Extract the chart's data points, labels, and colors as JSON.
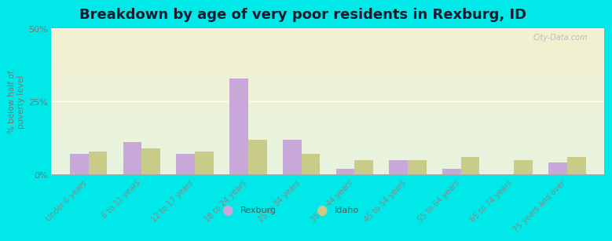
{
  "title": "Breakdown by age of very poor residents in Rexburg, ID",
  "ylabel": "% below half of\npoverty level",
  "categories": [
    "Under 6 years",
    "6 to 11 years",
    "12 to 17 years",
    "18 to 24 years",
    "25 to 34 years",
    "35 to 44 years",
    "45 to 54 years",
    "55 to 64 years",
    "65 to 74 years",
    "75 years and over"
  ],
  "rexburg": [
    7,
    11,
    7,
    33,
    12,
    2,
    5,
    2,
    0,
    4
  ],
  "idaho": [
    8,
    9,
    8,
    12,
    7,
    5,
    5,
    6,
    5,
    6
  ],
  "rexburg_color": "#c8a8d8",
  "idaho_color": "#c8cc88",
  "background_outer": "#00e8e8",
  "background_plot_top": "#e8f4e0",
  "background_plot_bottom": "#f2f0d0",
  "ylim": [
    0,
    50
  ],
  "yticks": [
    0,
    25,
    50
  ],
  "ytick_labels": [
    "0%",
    "25%",
    "50%"
  ],
  "legend_rexburg": "Rexburg",
  "legend_idaho": "Idaho",
  "title_fontsize": 13,
  "bar_width": 0.35,
  "watermark": "City-Data.com"
}
